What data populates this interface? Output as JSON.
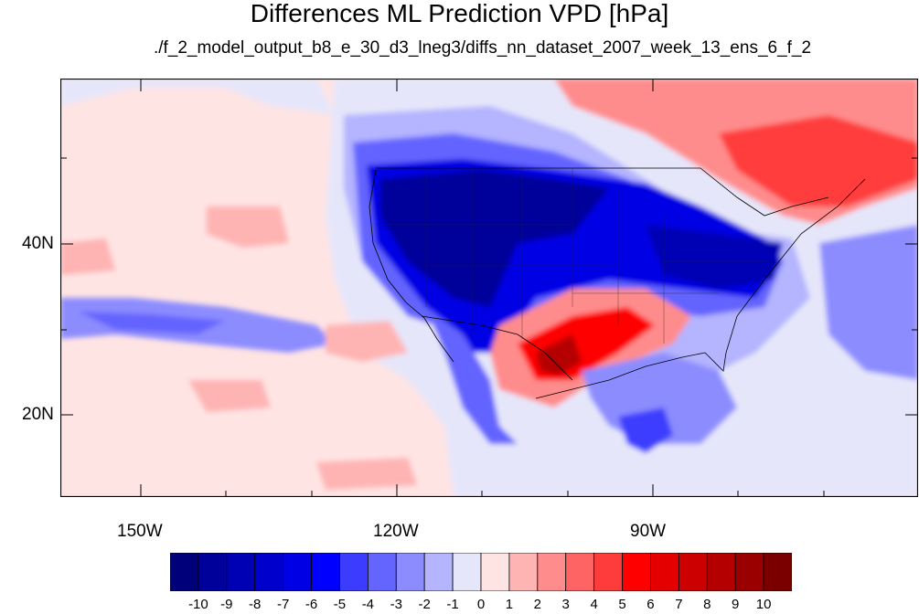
{
  "title": "Differences ML Prediction VPD [hPa]",
  "subtitle": "./f_2_model_output_b8_e_30_d3_lneg3/diffs_nn_dataset_2007_week_13_ens_6_f_2",
  "map": {
    "projection": "cylindrical equidistant",
    "lon_range": [
      -162,
      -62
    ],
    "lat_range": [
      10,
      59
    ],
    "lon_ticks": [
      "150W",
      "120W",
      "90W"
    ],
    "lat_ticks": [
      "40N",
      "20N"
    ],
    "background_level": 1
  },
  "colorbar": {
    "labels": [
      "-10",
      "-9",
      "-8",
      "-7",
      "-6",
      "-5",
      "-4",
      "-3",
      "-2",
      "-1",
      "0",
      "1",
      "2",
      "3",
      "4",
      "5",
      "6",
      "7",
      "8",
      "9",
      "10"
    ],
    "colors": [
      "#00007a",
      "#00009a",
      "#0000b4",
      "#0000cc",
      "#0000e4",
      "#0000ff",
      "#3c3cff",
      "#6464ff",
      "#8c8cff",
      "#b4b4ff",
      "#e6e6fa",
      "#ffe4e4",
      "#ffb4b4",
      "#ff8c8c",
      "#ff6464",
      "#ff3c3c",
      "#ff0000",
      "#e40000",
      "#cc0000",
      "#b40000",
      "#9a0000",
      "#7a0000"
    ]
  }
}
